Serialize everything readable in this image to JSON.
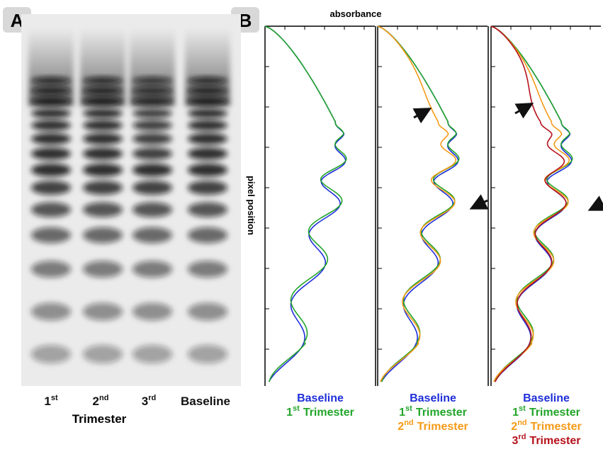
{
  "panel_a": {
    "label": "A",
    "lanes": [
      {
        "ordinal": "1",
        "suffix": "st"
      },
      {
        "ordinal": "2",
        "suffix": "nd"
      },
      {
        "ordinal": "3",
        "suffix": "rd"
      },
      {
        "text": "Baseline"
      }
    ],
    "group_label": "Trimester"
  },
  "panel_b": {
    "label": "B",
    "x_axis_label": "absorbance",
    "y_axis_label": "pixel position",
    "legends": [
      [
        {
          "text": "Baseline"
        },
        {
          "ordinal": "1",
          "suffix": "st",
          "text": "Trimester"
        }
      ],
      [
        {
          "text": "Baseline"
        },
        {
          "ordinal": "1",
          "suffix": "st",
          "text": "Trimester"
        },
        {
          "ordinal": "2",
          "suffix": "nd",
          "text": "Trimester"
        }
      ],
      [
        {
          "text": "Baseline"
        },
        {
          "ordinal": "1",
          "suffix": "st",
          "text": "Trimester"
        },
        {
          "ordinal": "2",
          "suffix": "nd",
          "text": "Trimester"
        },
        {
          "ordinal": "3",
          "suffix": "rd",
          "text": "Trimester"
        }
      ]
    ]
  }
}
